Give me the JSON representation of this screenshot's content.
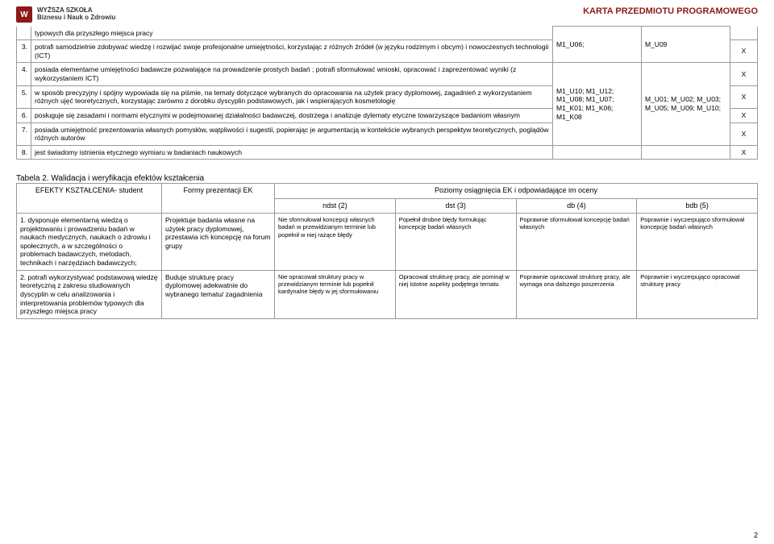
{
  "header": {
    "school_line1": "WYŻSZA SZKOŁA",
    "school_line2": "Biznesu i Nauk o Zdrowiu",
    "title": "KARTA PRZEDMIOTU PROGRAMOWEGO"
  },
  "table1": {
    "rows": [
      {
        "num": "",
        "text": "typowych dla przyszłego miejsca pracy",
        "code1": "",
        "code2": "",
        "x": ""
      },
      {
        "num": "3.",
        "text": "potrafi samodzielnie zdobywać wiedzę i rozwijać swoje profesjonalne umiejętności, korzystając z różnych źródeł (w języku rodzimym i obcym) i nowoczesnych technologii (ICT)",
        "code1": "",
        "code2": "",
        "x": "X"
      },
      {
        "num": "4.",
        "text": "posiada elementarne umiejętności badawcze pozwalające na prowadzenie prostych badań ; potrafi sformułować wnioski, opracować i zaprezentować wyniki (z wykorzystaniem ICT)",
        "code1": "M1_U06;",
        "code2": "M_U09",
        "x": "X"
      },
      {
        "num": "5.",
        "text": "w sposób precyzyjny i spójny wypowiada się na piśmie, na tematy dotyczące wybranych do opracowania na użytek pracy dyplomowej, zagadnień z wykorzystaniem różnych ujęć teoretycznych, korzystając zarówno z dorobku dyscyplin podstawowych, jak i wspierających kosmetologię",
        "code1": "",
        "code2": "",
        "x": "X"
      },
      {
        "num": "6.",
        "text": "posługuje się zasadami i normami etycznymi w podejmowanej działalności badawczej, dostrzega i analizuje dylematy etyczne towarzyszące badaniom własnym",
        "code1": "M1_U10; M1_U12; M1_U08; M1_U07; M1_K01; M1_K06; M1_K08",
        "code2": "M_U01; M_U02; M_U03; M_U05; M_U09; M_U10;",
        "x": "X"
      },
      {
        "num": "7.",
        "text": "posiada umiejętność prezentowania własnych pomysłów, wątpliwości i sugestii, popierając je argumentacją w kontekście wybranych perspektyw teoretycznych, poglądów różnych autorów",
        "code1": "",
        "code2": "",
        "x": "X"
      },
      {
        "num": "8.",
        "text": "jest świadomy istnienia etycznego wymiaru w badaniach naukowych",
        "code1": "",
        "code2": "",
        "x": "X"
      }
    ],
    "merged_code1": "M1_U10; M1_U12; M1_U08; M1_U07; M1_K01; M1_K06; M1_K08",
    "merged_code2": "M_U01; M_U02; M_U03; M_U05; M_U09; M_U10;"
  },
  "table2": {
    "caption": "Tabela 2. Walidacja i weryfikacja efektów kształcenia",
    "headers": {
      "ef": "EFEKTY KSZTAŁCENIA- student",
      "form": "Formy prezentacji EK",
      "levels_title": "Poziomy osiągnięcia EK i odpowiadające im oceny",
      "ndst": "ndst (2)",
      "dst": "dst (3)",
      "db": "db (4)",
      "bdb": "bdb (5)"
    },
    "rows": [
      {
        "num": "1.",
        "ef": "dysponuje elementarną wiedzą o projektowaniu i prowadzeniu badań w naukach medycznych, naukach o zdrowiu i społecznych, a w szczególności o problemach badawczych, metodach, technikach i narzędziach badawczych;",
        "form": "Projektuje badania własne na użytek pracy dyplomowej, przestawia ich koncepcję na forum grupy",
        "ndst": "Nie sformułował koncepcji własnych badań w przewidzianym terminie lub popełnił w niej rażące błędy",
        "dst": "Popełnił drobne błędy formułując koncepcję badań własnych",
        "db": "Poprawnie sformułował koncepcję badań własnych",
        "bdb": "Poprawnie i wyczerpująco sformułował koncepcję badań własnych"
      },
      {
        "num": "2.",
        "ef": "potrafi wykorzystywać podstawową wiedzę teoretyczną z zakresu studiowanych dyscyplin w celu analizowania i interpretowania problemów typowych dla przyszłego miejsca pracy",
        "form": "Buduje strukturę pracy dyplomowej adekwatnie do wybranego tematu/ zagadnienia",
        "ndst": "Nie opracował struktury pracy w przewidzianym terminie lub popełnił kardynalne błędy w jej sformułowaniu",
        "dst": "Opracował strukturę pracy, ale pominął w niej istotne aspekty podjętego tematu",
        "db": "Poprawnie opracował strukturę pracy, ale wymaga ona dalszego poszerzenia",
        "bdb": "Poprawnie i wyczerpująco opracował strukturę pracy"
      }
    ]
  },
  "page_number": "2"
}
